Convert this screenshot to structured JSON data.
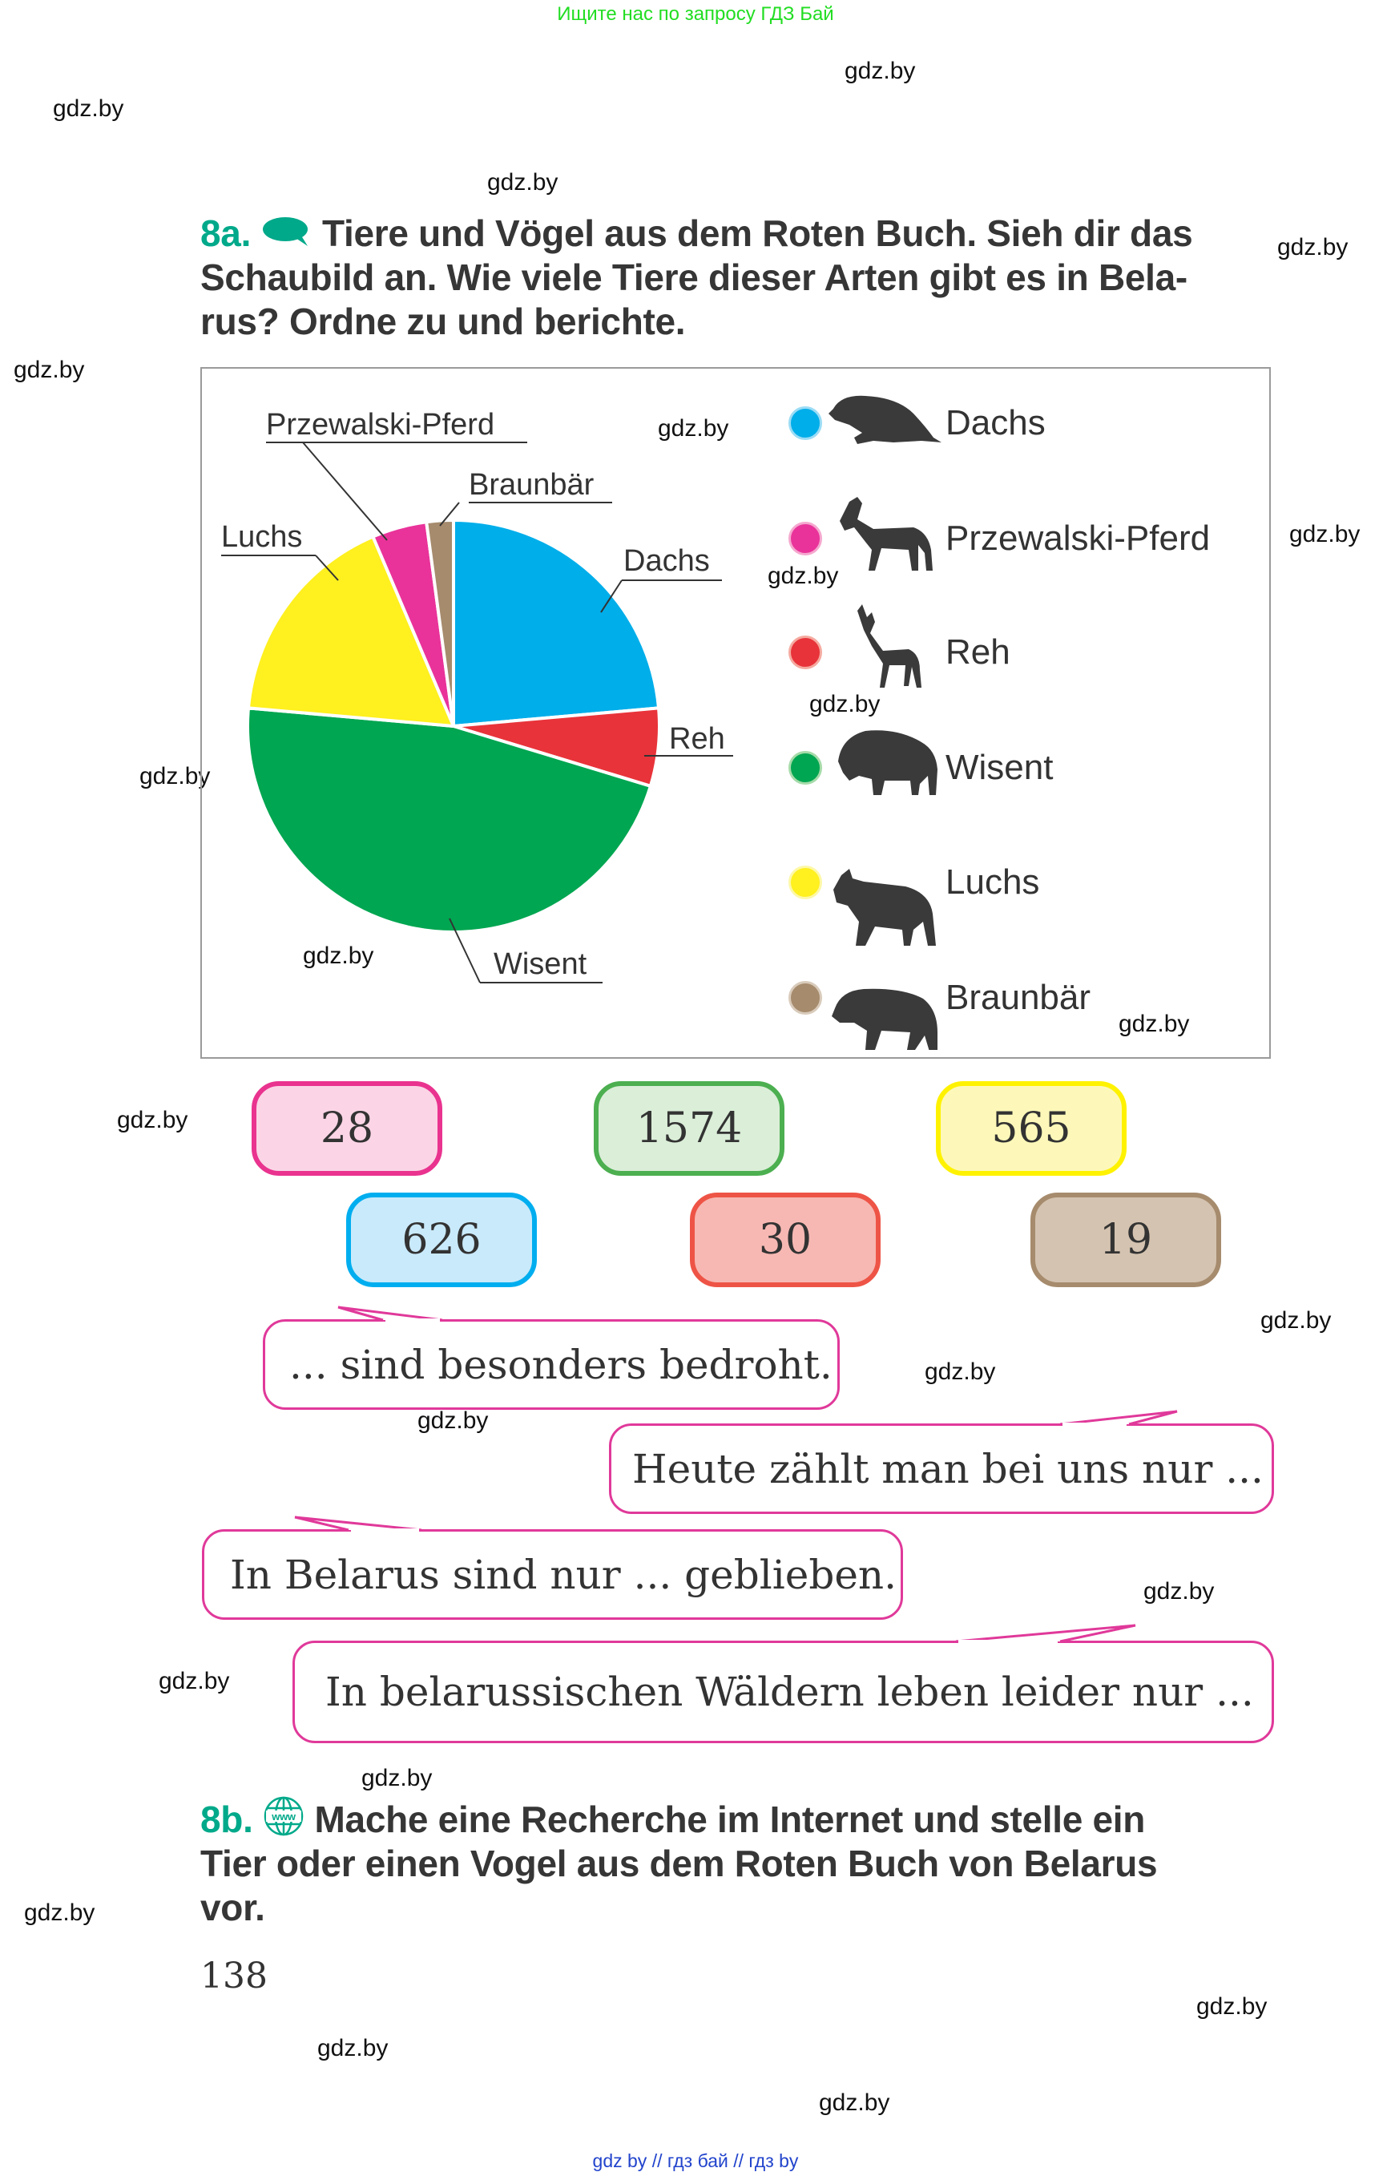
{
  "top_banner": "Ищите нас по запросу ГДЗ Бай",
  "watermark": "gdz.by",
  "task_8a": {
    "number": "8a.",
    "icon": "speech-bubble-icon",
    "lines": [
      "Tiere und Vögel aus dem Roten Buch. Sieh dir das",
      "Schaubild an. Wie viele Tiere dieser Arten gibt es in Bela-",
      "rus? Ordne zu und berichte."
    ]
  },
  "chart_data": {
    "type": "pie",
    "title": "",
    "value_unit": "approximate percent share (estimated from slice angles)",
    "categories": [
      "Dachs",
      "Reh",
      "Wisent",
      "Luchs",
      "Przewalski-Pferd",
      "Braunbär"
    ],
    "values": [
      23.6,
      6.1,
      46.7,
      17.2,
      4.3,
      2.1
    ],
    "colors": [
      "#00aeea",
      "#e8333a",
      "#00a651",
      "#fff01f",
      "#e9339a",
      "#a68b6d"
    ],
    "slice_labels": [
      "Dachs",
      "Reh",
      "Wisent",
      "Luchs",
      "Przewalski-Pferd",
      "Braunbär"
    ],
    "legend": {
      "placement": "right",
      "items": [
        {
          "label": "Dachs",
          "color": "#00aeea",
          "icon": "badger-icon"
        },
        {
          "label": "Przewalski-Pferd",
          "color": "#e9339a",
          "icon": "horse-icon"
        },
        {
          "label": "Reh",
          "color": "#e8333a",
          "icon": "deer-icon"
        },
        {
          "label": "Wisent",
          "color": "#00a651",
          "icon": "bison-icon"
        },
        {
          "label": "Luchs",
          "color": "#fff01f",
          "icon": "lynx-icon"
        },
        {
          "label": "Braunbär",
          "color": "#a68b6d",
          "icon": "bear-icon"
        }
      ]
    }
  },
  "number_cards": [
    {
      "value": "28",
      "fill": "#fbd5e6",
      "border": "#e9338f"
    },
    {
      "value": "1574",
      "fill": "#dbeed8",
      "border": "#4caf50"
    },
    {
      "value": "565",
      "fill": "#fdf8b9",
      "border": "#fff200"
    },
    {
      "value": "626",
      "fill": "#c9eafb",
      "border": "#00aeef"
    },
    {
      "value": "30",
      "fill": "#f7b8b3",
      "border": "#ee5446"
    },
    {
      "value": "19",
      "fill": "#d4c3b0",
      "border": "#a68b6d"
    }
  ],
  "sentence_bubbles": [
    "... sind besonders bedroht.",
    "Heute zählt man bei uns nur ...",
    "In Belarus sind nur ... geblieben.",
    "In belarussischen Wäldern leben leider nur ..."
  ],
  "task_8b": {
    "number": "8b.",
    "icon": "www-globe-icon",
    "lines": [
      "Mache eine Recherche im Internet und stelle ein",
      "Tier oder einen Vogel aus dem Roten Buch von Belarus",
      "vor."
    ]
  },
  "page_number": "138",
  "footer": "gdz by  //  гдз бай  //  гдз by"
}
